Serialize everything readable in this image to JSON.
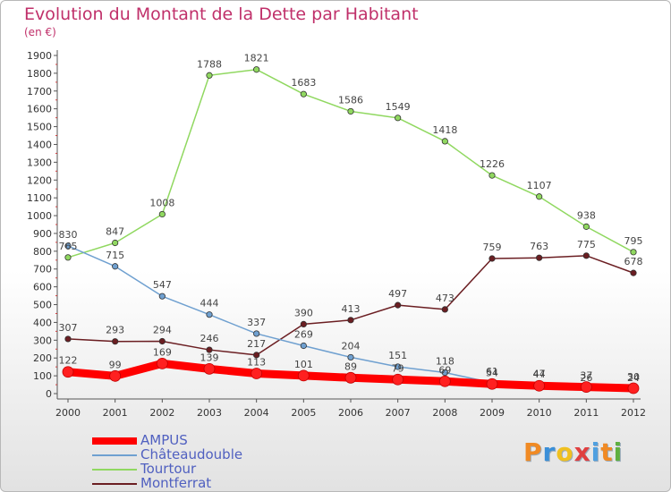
{
  "header": {
    "title": "Evolution du Montant de la Dette par Habitant",
    "subtitle": "(en €)"
  },
  "logo": {
    "letters": [
      "P",
      "r",
      "o",
      "x",
      "i",
      "t",
      "i"
    ],
    "colors": [
      "#f08a24",
      "#3a8fd8",
      "#f0c020",
      "#e04040",
      "#50a0e0",
      "#f08a24",
      "#60b040"
    ]
  },
  "chart_data": {
    "type": "line",
    "title": "Evolution du Montant de la Dette par Habitant",
    "ylabel": "(en €)",
    "xlabel": "",
    "ylim": [
      0,
      1900
    ],
    "ystep": 100,
    "x": [
      "2000",
      "2001",
      "2002",
      "2003",
      "2004",
      "2005",
      "2006",
      "2007",
      "2008",
      "2009",
      "2010",
      "2011",
      "2012"
    ],
    "grid": false,
    "legend_position": "bottom-left",
    "series": [
      {
        "name": "AMPUS",
        "color": "#ff0000",
        "width": 9,
        "values": [
          122,
          99,
          169,
          139,
          113,
          101,
          89,
          79,
          69,
          54,
          44,
          37,
          30
        ]
      },
      {
        "name": "Châteaudouble",
        "color": "#6fa0d0",
        "width": 1.5,
        "values": [
          830,
          715,
          547,
          444,
          337,
          269,
          204,
          151,
          118,
          61,
          47,
          26,
          24
        ]
      },
      {
        "name": "Tourtour",
        "color": "#90d860",
        "width": 1.5,
        "values": [
          765,
          847,
          1008,
          1788,
          1821,
          1683,
          1586,
          1549,
          1418,
          1226,
          1107,
          938,
          795
        ]
      },
      {
        "name": "Montferrat",
        "color": "#6b1e22",
        "width": 1.5,
        "values": [
          307,
          293,
          294,
          246,
          217,
          390,
          413,
          497,
          473,
          759,
          763,
          775,
          678
        ]
      }
    ]
  }
}
